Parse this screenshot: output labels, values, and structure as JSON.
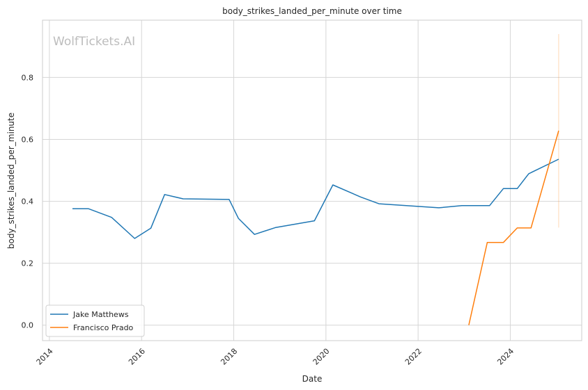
{
  "chart_data": {
    "type": "line",
    "title": "body_strikes_landed_per_minute over time",
    "xlabel": "Date",
    "ylabel": "body_strikes_landed_per_minute",
    "xlim": [
      2013.85,
      2025.55
    ],
    "ylim": [
      -0.05,
      0.985
    ],
    "x_ticks": [
      2014,
      2016,
      2018,
      2020,
      2022,
      2024
    ],
    "y_ticks": [
      0.0,
      0.2,
      0.4,
      0.6,
      0.8
    ],
    "grid": true,
    "legend_position": "lower-left",
    "watermark": "WolfTickets.AI",
    "series": [
      {
        "name": "Jake Matthews",
        "color": "#1f77b4",
        "x": [
          2014.5,
          2014.85,
          2015.35,
          2015.85,
          2016.2,
          2016.5,
          2016.9,
          2017.9,
          2018.1,
          2018.45,
          2018.9,
          2019.75,
          2020.15,
          2020.75,
          2021.15,
          2022.45,
          2022.95,
          2023.55,
          2023.85,
          2024.15,
          2024.4,
          2025.05
        ],
        "y": [
          0.376,
          0.376,
          0.348,
          0.28,
          0.313,
          0.422,
          0.408,
          0.406,
          0.345,
          0.293,
          0.315,
          0.337,
          0.453,
          0.414,
          0.392,
          0.379,
          0.386,
          0.386,
          0.441,
          0.441,
          0.489,
          0.536
        ]
      },
      {
        "name": "Francisco Prado",
        "color": "#ff7f0e",
        "x": [
          2023.1,
          2023.5,
          2023.85,
          2024.15,
          2024.45,
          2025.05
        ],
        "y": [
          0.0,
          0.267,
          0.267,
          0.314,
          0.314,
          0.628
        ],
        "error_bar": {
          "x": 2025.05,
          "low": 0.315,
          "high": 0.94
        }
      }
    ]
  }
}
